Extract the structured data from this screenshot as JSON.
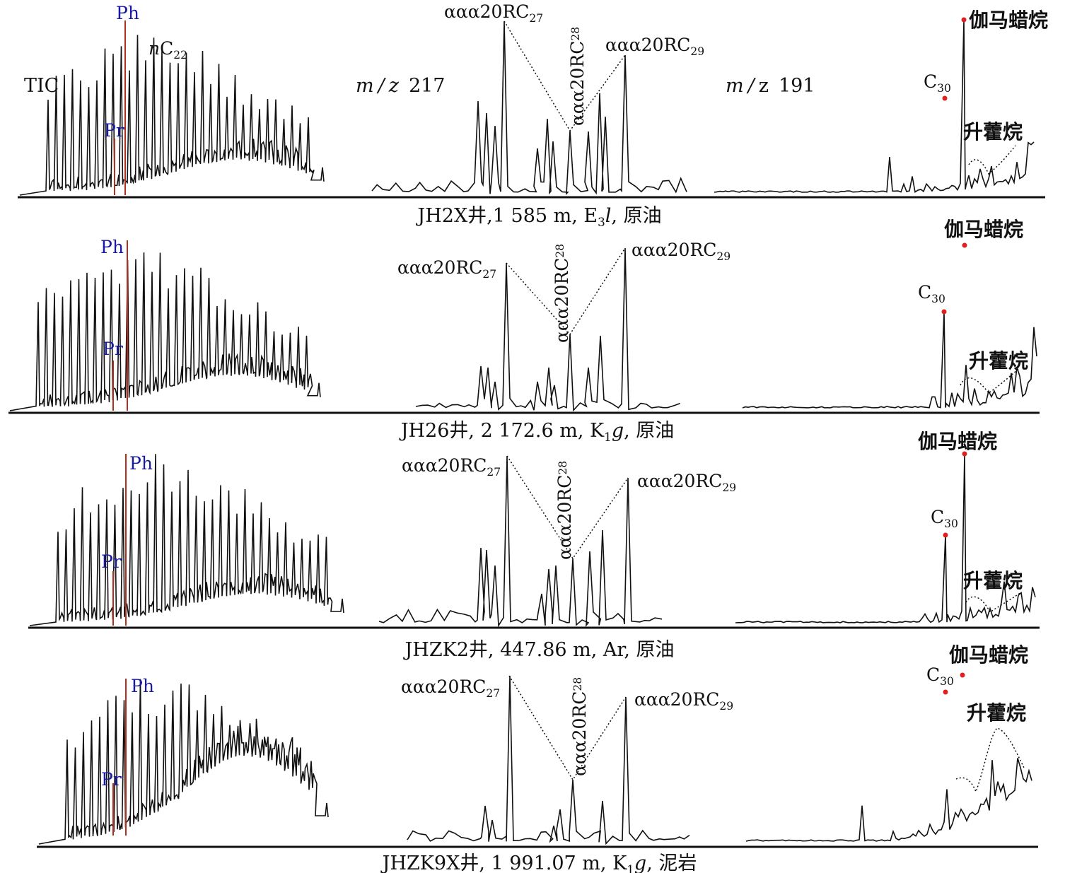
{
  "chart_data": [
    {
      "type": "line",
      "row": 0,
      "caption": "JH2X井,1 585 m, E₃l, 原油",
      "panels": {
        "tic": {
          "label": "TIC",
          "pr": "Pr",
          "ph": "Ph",
          "nc22_n": "n",
          "nc22_c": "C",
          "nc22_sub": "22"
        },
        "m217": {
          "label_m": "m",
          "label_slash": "/",
          "label_z": "z",
          "label_val": "217",
          "c27": "ααα20RC",
          "c27_sub": "27",
          "c28": "ααα20RC",
          "c28_sub": "28",
          "c29": "ααα20RC",
          "c29_sub": "29"
        },
        "m191": {
          "label_m": "m",
          "label_slash": "/",
          "label_z": "z",
          "label_val": "191",
          "gammacerane": "伽马蜡烷",
          "c30": "C",
          "c30_sub": "30",
          "homohopane": "升藿烷"
        }
      }
    },
    {
      "type": "line",
      "row": 1,
      "caption": "JH26井, 2 172.6 m, K₁g, 原油",
      "panels": {
        "tic": {
          "pr": "Pr",
          "ph": "Ph"
        },
        "m217": {
          "c27": "ααα20RC",
          "c27_sub": "27",
          "c28": "ααα20RC",
          "c28_sub": "28",
          "c29": "ααα20RC",
          "c29_sub": "29"
        },
        "m191": {
          "gammacerane": "伽马蜡烷",
          "c30": "C",
          "c30_sub": "30",
          "homohopane": "升藿烷"
        }
      }
    },
    {
      "type": "line",
      "row": 2,
      "caption": "JHZK2井, 447.86 m, Ar, 原油",
      "panels": {
        "tic": {
          "pr": "Pr",
          "ph": "Ph"
        },
        "m217": {
          "c27": "ααα20RC",
          "c27_sub": "27",
          "c28": "ααα20RC",
          "c28_sub": "28",
          "c29": "ααα20RC",
          "c29_sub": "29"
        },
        "m191": {
          "gammacerane": "伽马蜡烷",
          "c30": "C",
          "c30_sub": "30",
          "homohopane": "升藿烷"
        }
      }
    },
    {
      "type": "line",
      "row": 3,
      "caption": "JHZK9X井, 1 991.07 m, K₁g, 泥岩",
      "panels": {
        "tic": {
          "pr": "Pr",
          "ph": "Ph"
        },
        "m217": {
          "c27": "ααα20RC",
          "c27_sub": "27",
          "c28": "ααα20RC",
          "c28_sub": "28",
          "c29": "ααα20RC",
          "c29_sub": "29"
        },
        "m191": {
          "gammacerane": "伽马蜡烷",
          "c30": "C",
          "c30_sub": "30",
          "homohopane": "升藿烷"
        }
      }
    }
  ],
  "colors": {
    "trace": "#111111",
    "pr_ph_line": "#b03020",
    "pr_ph_text": "#1a1aa0",
    "marker": "#e02020"
  }
}
